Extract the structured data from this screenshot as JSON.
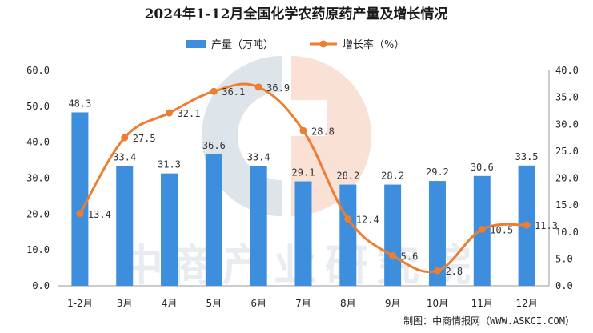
{
  "chart_data": {
    "type": "bar+line",
    "title": "2024年1-12月全国化学农药原药产量及增长情况",
    "categories": [
      "1-2月",
      "3月",
      "4月",
      "5月",
      "6月",
      "7月",
      "8月",
      "9月",
      "10月",
      "11月",
      "12月"
    ],
    "series": [
      {
        "name": "产量（万吨）",
        "type": "bar",
        "axis": "left",
        "color": "#3d8fde",
        "values": [
          48.3,
          33.4,
          31.3,
          36.6,
          33.4,
          29.1,
          28.2,
          28.2,
          29.2,
          30.6,
          33.5
        ],
        "labels": [
          "48.3",
          "33.4",
          "31.3",
          "36.6",
          "33.4",
          "29.1",
          "28.2",
          "28.2",
          "29.2",
          "30.6",
          "33.5"
        ]
      },
      {
        "name": "增长率（%）",
        "type": "line",
        "axis": "right",
        "color": "#ed7d31",
        "values": [
          13.4,
          27.5,
          32.1,
          36.1,
          36.9,
          28.8,
          12.4,
          5.6,
          2.8,
          10.5,
          11.3
        ],
        "labels": [
          "13.4",
          "27.5",
          "32.1",
          "36.1",
          "36.9",
          "28.8",
          "12.4",
          "5.6",
          "2.8",
          "10.5",
          "11.3"
        ]
      }
    ],
    "y_left": {
      "min": 0,
      "max": 60,
      "step": 10,
      "ticks": [
        "0.0",
        "10.0",
        "20.0",
        "30.0",
        "40.0",
        "50.0",
        "60.0"
      ]
    },
    "y_right": {
      "min": 0,
      "max": 40,
      "step": 5,
      "ticks": [
        "0.0",
        "5.0",
        "10.0",
        "15.0",
        "20.0",
        "25.0",
        "30.0",
        "35.0",
        "40.0"
      ]
    },
    "legend_position": "top-center",
    "grid": false
  },
  "source": "制图：中商情报网（WWW.ASKCI.COM）",
  "watermark": "中商产业研究院"
}
